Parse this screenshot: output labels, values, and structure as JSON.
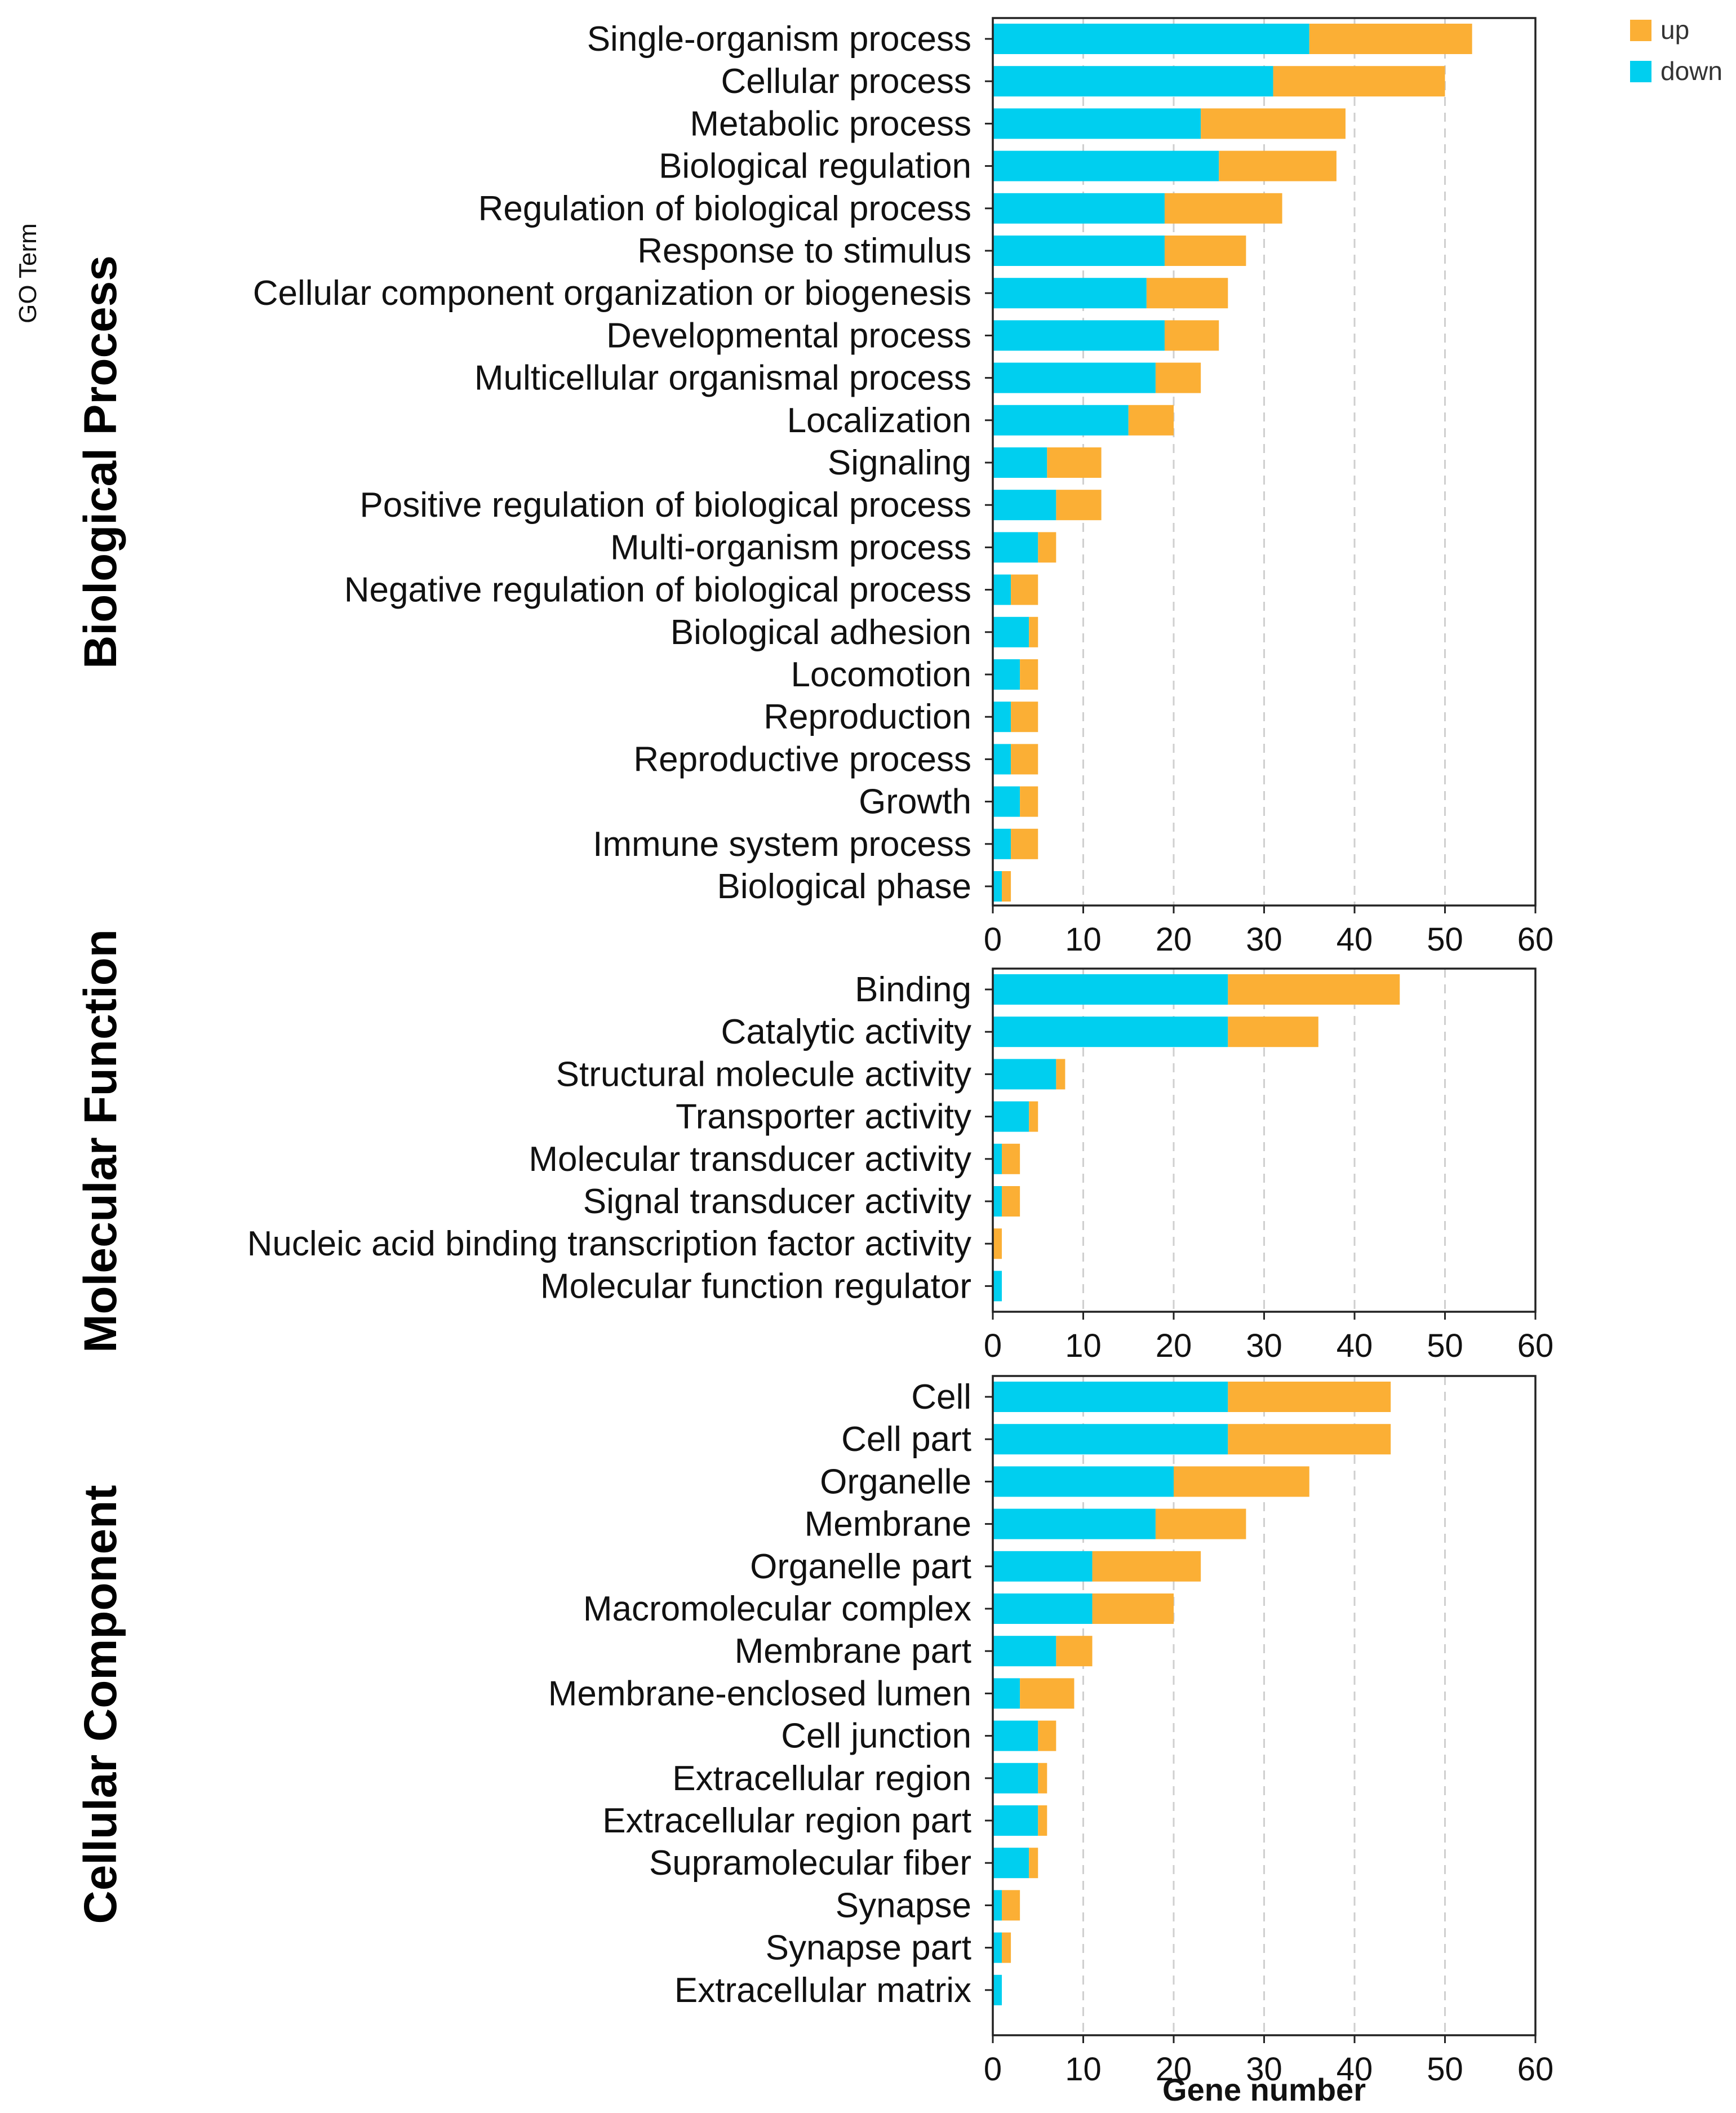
{
  "chart_data": {
    "type": "bar",
    "orientation": "horizontal",
    "stacked": true,
    "y_axis_title": "GO Term",
    "x_axis_title": "Gene number",
    "xlim": [
      0,
      60
    ],
    "x_ticks": [
      "0",
      "10",
      "20",
      "30",
      "40",
      "50",
      "60"
    ],
    "grid": "vertical dashed",
    "legend": {
      "position": "top-right",
      "entries": [
        {
          "label": "up",
          "color": "#fbaf35"
        },
        {
          "label": "down",
          "color": "#00cfef"
        }
      ]
    },
    "colors": {
      "down": "#00cfef",
      "up": "#fbaf35"
    },
    "panels": [
      {
        "title": "Biological Process",
        "categories": [
          "Single-organism process",
          "Cellular process",
          "Metabolic process",
          "Biological regulation",
          "Regulation of biological process",
          "Response to stimulus",
          "Cellular component organization or biogenesis",
          "Developmental process",
          "Multicellular organismal process",
          "Localization",
          "Signaling",
          "Positive regulation of biological process",
          "Multi-organism process",
          "Negative regulation of biological process",
          "Biological adhesion",
          "Locomotion",
          "Reproduction",
          "Reproductive process",
          "Growth",
          "Immune system process",
          "Biological phase"
        ],
        "series": [
          {
            "name": "down",
            "values": [
              35,
              31,
              23,
              25,
              19,
              19,
              17,
              19,
              18,
              15,
              6,
              7,
              5,
              2,
              4,
              3,
              2,
              2,
              3,
              2,
              1
            ]
          },
          {
            "name": "up",
            "values": [
              18,
              19,
              16,
              13,
              13,
              9,
              9,
              6,
              5,
              5,
              6,
              5,
              2,
              3,
              1,
              2,
              3,
              3,
              2,
              3,
              1
            ]
          }
        ]
      },
      {
        "title": "Molecular Function",
        "categories": [
          "Binding",
          "Catalytic activity",
          "Structural molecule activity",
          "Transporter activity",
          "Molecular transducer activity",
          "Signal transducer activity",
          "Nucleic acid binding transcription factor activity",
          "Molecular function regulator"
        ],
        "series": [
          {
            "name": "down",
            "values": [
              26,
              26,
              7,
              4,
              1,
              1,
              0,
              1
            ]
          },
          {
            "name": "up",
            "values": [
              19,
              10,
              1,
              1,
              2,
              2,
              1,
              0
            ]
          }
        ]
      },
      {
        "title": "Cellular Component",
        "categories": [
          "Cell",
          "Cell part",
          "Organelle",
          "Membrane",
          "Organelle part",
          "Macromolecular complex",
          "Membrane part",
          "Membrane-enclosed lumen",
          "Cell junction",
          "Extracellular region",
          "Extracellular region part",
          "Supramolecular fiber",
          "Synapse",
          "Synapse part",
          "Extracellular matrix"
        ],
        "series": [
          {
            "name": "down",
            "values": [
              26,
              26,
              20,
              18,
              11,
              11,
              7,
              3,
              5,
              5,
              5,
              4,
              1,
              1,
              1
            ]
          },
          {
            "name": "up",
            "values": [
              18,
              18,
              15,
              10,
              12,
              9,
              4,
              6,
              2,
              1,
              1,
              1,
              2,
              1,
              0
            ]
          }
        ]
      }
    ]
  }
}
